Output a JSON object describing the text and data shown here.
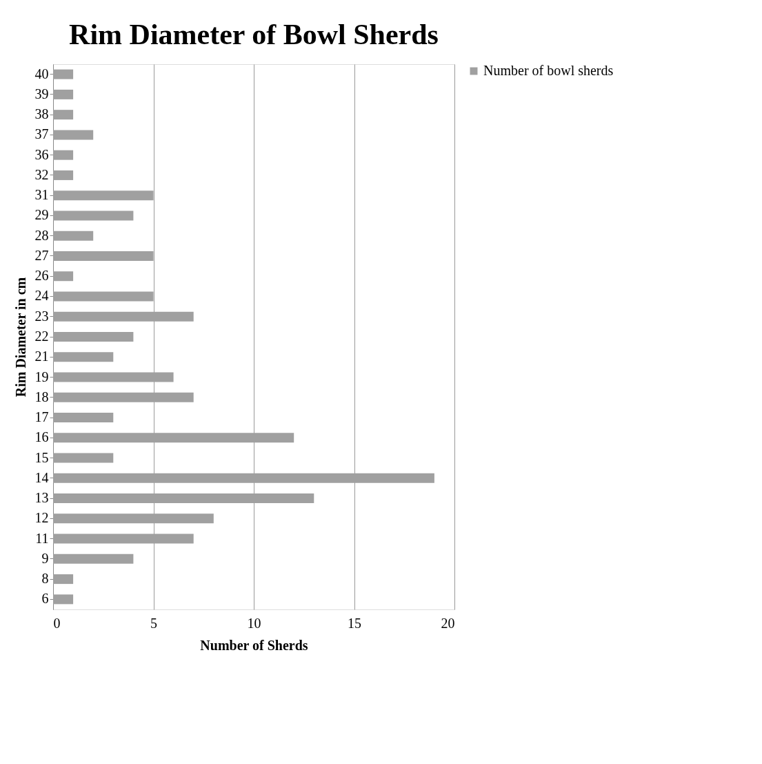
{
  "chart_data": {
    "type": "bar",
    "orientation": "horizontal",
    "title": "Rim Diameter of Bowl Sherds",
    "xlabel": "Number of Sherds",
    "ylabel": "Rim Diameter in cm",
    "categories": [
      "40",
      "39",
      "38",
      "37",
      "36",
      "32",
      "31",
      "29",
      "28",
      "27",
      "26",
      "24",
      "23",
      "22",
      "21",
      "19",
      "18",
      "17",
      "16",
      "15",
      "14",
      "13",
      "12",
      "11",
      "9",
      "8",
      "6"
    ],
    "series": [
      {
        "name": "Number of bowl sherds",
        "color": "#a0a0a0",
        "values": [
          1,
          1,
          1,
          2,
          1,
          1,
          5,
          4,
          2,
          5,
          1,
          5,
          7,
          4,
          3,
          6,
          7,
          3,
          12,
          3,
          19,
          13,
          8,
          7,
          4,
          1,
          1
        ]
      }
    ],
    "xlim": [
      0,
      20
    ],
    "xticks": [
      0,
      5,
      10,
      15,
      20
    ],
    "grid": "x",
    "legend": "right"
  }
}
